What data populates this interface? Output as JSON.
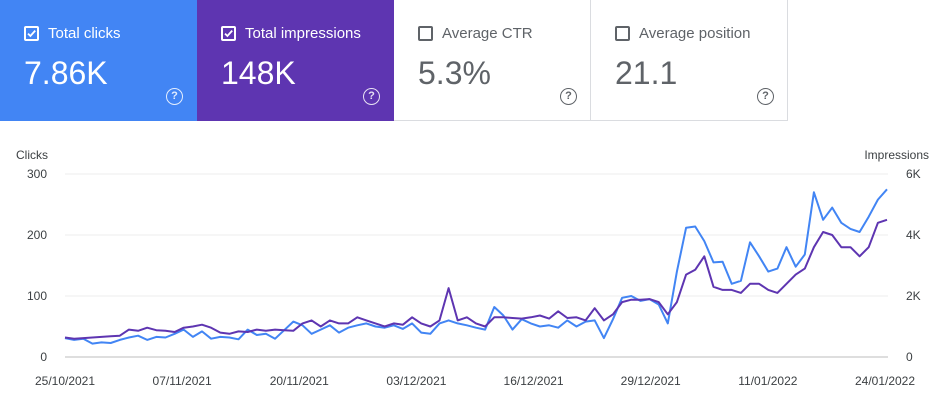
{
  "metrics": [
    {
      "id": "clicks",
      "label": "Total clicks",
      "value": "7.86K",
      "checked": true,
      "color": "#4285f4"
    },
    {
      "id": "impressions",
      "label": "Total impressions",
      "value": "148K",
      "checked": true,
      "color": "#5e35b1"
    },
    {
      "id": "ctr",
      "label": "Average CTR",
      "value": "5.3%",
      "checked": false
    },
    {
      "id": "position",
      "label": "Average position",
      "value": "21.1",
      "checked": false
    }
  ],
  "help_glyph": "?",
  "chart_data": {
    "type": "line",
    "ylabel": "Clicks",
    "y2label": "Impressions",
    "ylim": [
      0,
      300
    ],
    "y2lim": [
      0,
      6000
    ],
    "yticks": [
      "300",
      "200",
      "100",
      "0"
    ],
    "y2ticks": [
      "6K",
      "4K",
      "2K",
      "0"
    ],
    "xticks": [
      "25/10/2021",
      "07/11/2021",
      "20/11/2021",
      "03/12/2021",
      "16/12/2021",
      "29/12/2021",
      "11/01/2022",
      "24/01/2022"
    ],
    "x_start": "25/10/2021",
    "x_end": "24/01/2022",
    "grid": true,
    "series": [
      {
        "name": "Total clicks",
        "axis": "left",
        "color": "#4285f4",
        "values": [
          31,
          28,
          30,
          22,
          24,
          23,
          28,
          32,
          35,
          28,
          33,
          32,
          38,
          45,
          33,
          42,
          30,
          33,
          32,
          29,
          45,
          36,
          38,
          30,
          44,
          58,
          52,
          38,
          45,
          52,
          40,
          48,
          52,
          55,
          50,
          48,
          52,
          46,
          55,
          40,
          38,
          55,
          60,
          55,
          52,
          48,
          45,
          82,
          68,
          45,
          62,
          55,
          50,
          52,
          48,
          60,
          50,
          58,
          60,
          31,
          62,
          97,
          100,
          92,
          95,
          86,
          55,
          140,
          212,
          214,
          190,
          155,
          156,
          120,
          125,
          188,
          165,
          140,
          145,
          180,
          148,
          168,
          270,
          225,
          245,
          220,
          210,
          205,
          230,
          258,
          275
        ]
      },
      {
        "name": "Total impressions",
        "axis": "right",
        "color": "#5e35b1",
        "values": [
          640,
          600,
          620,
          640,
          660,
          680,
          700,
          900,
          860,
          960,
          880,
          860,
          820,
          960,
          1000,
          1060,
          960,
          800,
          760,
          840,
          820,
          900,
          860,
          900,
          880,
          860,
          1100,
          1200,
          1000,
          1200,
          1100,
          1100,
          1300,
          1200,
          1100,
          1000,
          1100,
          1060,
          1300,
          1100,
          1000,
          1200,
          2260,
          1200,
          1300,
          1100,
          1000,
          1300,
          1300,
          1280,
          1260,
          1300,
          1360,
          1260,
          1500,
          1280,
          1300,
          1200,
          1600,
          1200,
          1400,
          1800,
          1880,
          1880,
          1900,
          1800,
          1400,
          1800,
          2700,
          2860,
          3300,
          2300,
          2200,
          2200,
          2100,
          2400,
          2400,
          2200,
          2100,
          2400,
          2700,
          2900,
          3600,
          4100,
          4000,
          3600,
          3600,
          3300,
          3600,
          4400,
          4500
        ]
      }
    ]
  }
}
